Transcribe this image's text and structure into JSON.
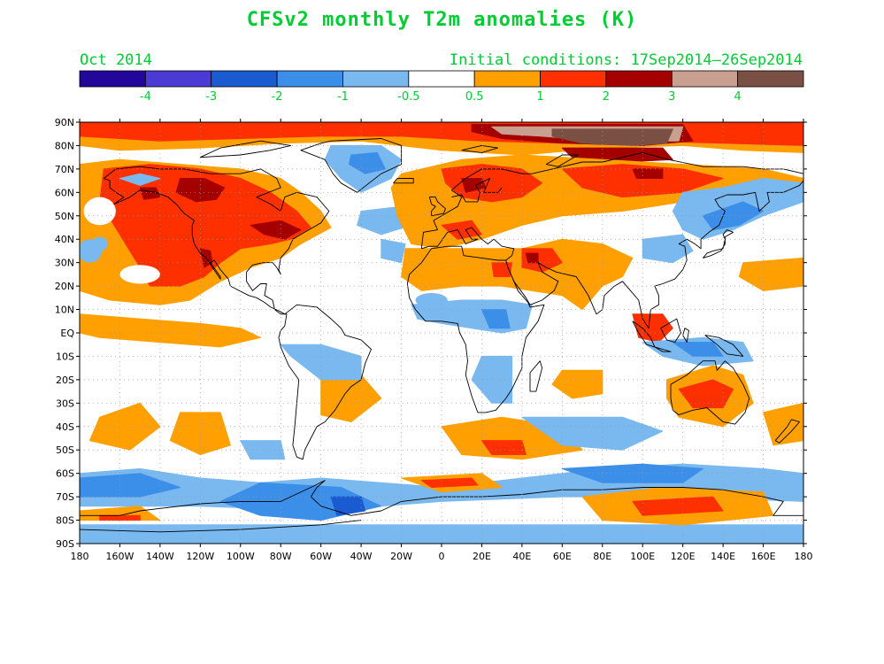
{
  "title": "CFSv2 monthly T2m anomalies (K)",
  "month": "Oct 2014",
  "initial_conditions": "Initial conditions: 17Sep2014–26Sep2014",
  "legend": {
    "colors": [
      "#23069a",
      "#4b3bd4",
      "#1a5bd1",
      "#3c8fe8",
      "#7ab8f0",
      "#ffffff",
      "#ff9f00",
      "#ff3000",
      "#a50000",
      "#c9a090",
      "#7a5045"
    ],
    "labels": [
      "-4",
      "-3",
      "-2",
      "-1",
      "-0.5",
      "0.5",
      "1",
      "2",
      "3",
      "4"
    ]
  },
  "lat_labels": [
    "90N",
    "80N",
    "70N",
    "60N",
    "50N",
    "40N",
    "30N",
    "20N",
    "10N",
    "EQ",
    "10S",
    "20S",
    "30S",
    "40S",
    "50S",
    "60S",
    "70S",
    "80S",
    "90S"
  ],
  "lon_labels": [
    "180",
    "160W",
    "140W",
    "120W",
    "100W",
    "80W",
    "60W",
    "40W",
    "20W",
    "0",
    "20E",
    "40E",
    "60E",
    "80E",
    "100E",
    "120E",
    "140E",
    "160E",
    "180"
  ],
  "colors": {
    "title": "#00cc33",
    "axis_text": "#000000",
    "grid": "#999999"
  }
}
